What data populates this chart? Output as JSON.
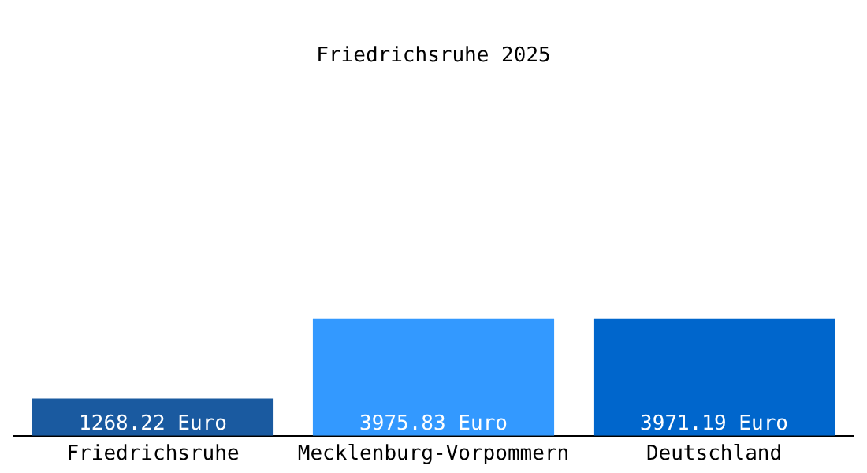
{
  "chart_data": {
    "type": "bar",
    "title": "Friedrichsruhe 2025",
    "categories": [
      "Friedrichsruhe",
      "Mecklenburg-Vorpommern",
      "Deutschland"
    ],
    "values": [
      1268.22,
      3975.83,
      3971.19
    ],
    "colors": [
      "#1a5aa0",
      "#3399ff",
      "#0066cc"
    ],
    "value_labels": [
      "1268.22 Euro",
      "3975.83 Euro",
      "3971.19 Euro"
    ],
    "grid": false,
    "legend": false
  }
}
